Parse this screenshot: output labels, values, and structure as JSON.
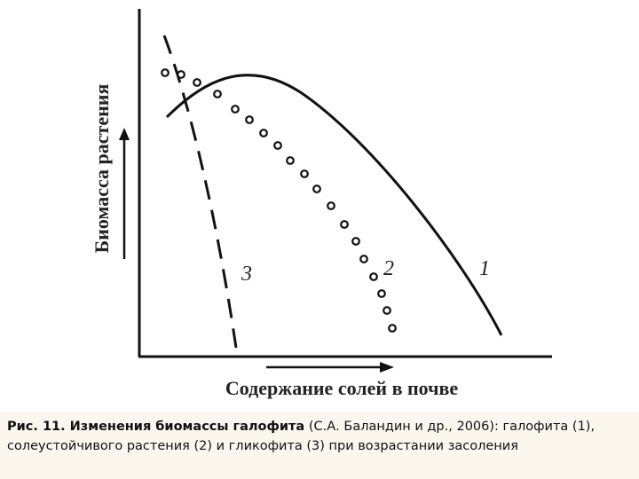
{
  "figure": {
    "y_axis_label": "Биомасса растения",
    "x_axis_label": "Содержание солей в почве",
    "curve_labels": [
      "1",
      "2",
      "3"
    ]
  },
  "caption": {
    "bold": "Рис. 11. Изменения биомассы галофита",
    "text": " (С.А. Баландин и др., 2006): галофита (1), солеустойчивого растения (2) и гликофита (3) при возрастании засоления"
  }
}
